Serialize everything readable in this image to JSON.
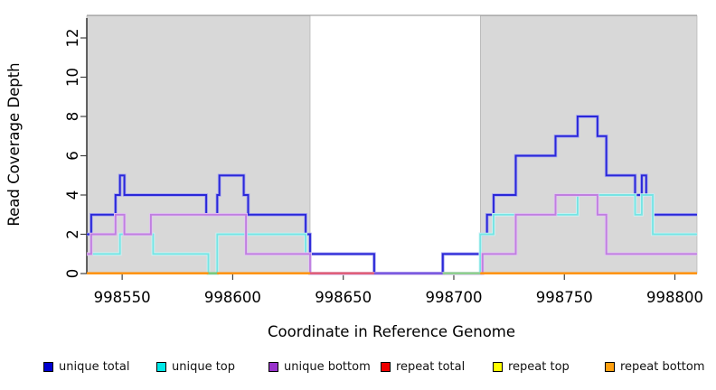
{
  "figure": {
    "y_axis_title": "Read Coverage Depth",
    "x_axis_title": "Coordinate in Reference Genome"
  },
  "chart_data": {
    "type": "line",
    "subtype": "step-coverage",
    "x_axis": {
      "label": "Coordinate in Reference Genome",
      "ticks": [
        998550,
        998600,
        998650,
        998700,
        998750,
        998800
      ],
      "range": [
        998534,
        998810
      ]
    },
    "y_axis": {
      "label": "Read Coverage Depth",
      "ticks": [
        0,
        2,
        4,
        6,
        8,
        10,
        12
      ],
      "range": [
        0,
        13.15
      ]
    },
    "grid": false,
    "legend_position": "bottom",
    "repeat_regions": [
      [
        998534,
        998635
      ],
      [
        998712,
        998810
      ]
    ],
    "region_fill": "#d8d8d8",
    "region_border": "#a8a8a8",
    "series": [
      {
        "name": "unique total",
        "color": "#2a27d8",
        "halo": "#a3a3ef",
        "segments": [
          [
            [
              998534,
              2
            ],
            [
              998536,
              3
            ],
            [
              998547,
              4
            ],
            [
              998549,
              5
            ],
            [
              998551,
              4
            ],
            [
              998588,
              3
            ],
            [
              998593,
              4
            ],
            [
              998594,
              5
            ],
            [
              998605,
              4
            ],
            [
              998607,
              3
            ],
            [
              998633,
              2
            ],
            [
              998635,
              1
            ],
            [
              998664,
              0
            ],
            [
              998695,
              1
            ],
            [
              998712,
              2
            ],
            [
              998715,
              3
            ],
            [
              998718,
              4
            ],
            [
              998728,
              6
            ],
            [
              998746,
              7
            ],
            [
              998756,
              8
            ],
            [
              998765,
              7
            ],
            [
              998769,
              5
            ],
            [
              998782,
              4
            ],
            [
              998785,
              5
            ],
            [
              998787,
              4
            ],
            [
              998790,
              3
            ],
            [
              998810,
              3
            ]
          ]
        ]
      },
      {
        "name": "unique top",
        "color": "#76e4e4",
        "halo": "#cdf4f4",
        "segments": [
          [
            [
              998534,
              1
            ],
            [
              998549,
              2
            ],
            [
              998564,
              1
            ],
            [
              998589,
              0
            ],
            [
              998593,
              2
            ],
            [
              998633,
              1
            ],
            [
              998635,
              0
            ],
            [
              998712,
              2
            ],
            [
              998718,
              3
            ],
            [
              998756,
              4
            ],
            [
              998782,
              3
            ],
            [
              998785,
              4
            ],
            [
              998790,
              2
            ],
            [
              998810,
              2
            ]
          ]
        ]
      },
      {
        "name": "unique bottom",
        "color": "#c07fe0",
        "halo": "#e3c6f2",
        "segments": [
          [
            [
              998534,
              1
            ],
            [
              998536,
              2
            ],
            [
              998547,
              3
            ],
            [
              998551,
              2
            ],
            [
              998563,
              3
            ],
            [
              998606,
              1
            ],
            [
              998635,
              0
            ],
            [
              998713,
              1
            ],
            [
              998728,
              3
            ],
            [
              998746,
              4
            ],
            [
              998765,
              3
            ],
            [
              998769,
              1
            ],
            [
              998810,
              1
            ]
          ]
        ]
      },
      {
        "name": "repeat total",
        "color": "#e60000",
        "halo": null,
        "segments": [
          [
            [
              998534,
              0
            ],
            [
              998635,
              0
            ]
          ],
          [
            [
              998712,
              0
            ],
            [
              998810,
              0
            ]
          ]
        ]
      },
      {
        "name": "repeat top",
        "color": "#ffff00",
        "halo": null,
        "segments": [
          [
            [
              998534,
              0
            ],
            [
              998635,
              0
            ]
          ],
          [
            [
              998712,
              0
            ],
            [
              998810,
              0
            ]
          ]
        ]
      },
      {
        "name": "repeat bottom",
        "color": "#ff9414",
        "halo": null,
        "segments": [
          [
            [
              998534,
              0
            ],
            [
              998635,
              0
            ]
          ],
          [
            [
              998712,
              0
            ],
            [
              998810,
              0
            ]
          ]
        ]
      }
    ],
    "baseline_segments": [
      {
        "x": [
          998534,
          998589
        ],
        "color": "#ff9414"
      },
      {
        "x": [
          998589,
          998593
        ],
        "color": "#7cc87c"
      },
      {
        "x": [
          998593,
          998635
        ],
        "color": "#ff9414"
      },
      {
        "x": [
          998635,
          998664
        ],
        "color": "#e0607a"
      },
      {
        "x": [
          998664,
          998695
        ],
        "color": "#7b5be0"
      },
      {
        "x": [
          998695,
          998712
        ],
        "color": "#8fd08f"
      },
      {
        "x": [
          998712,
          998810
        ],
        "color": "#ff9414"
      }
    ]
  },
  "legend": {
    "items": [
      {
        "label": "unique total",
        "color": "#0000d0"
      },
      {
        "label": "unique top",
        "color": "#00e8e8"
      },
      {
        "label": "unique bottom",
        "color": "#9933cc"
      },
      {
        "label": "repeat total",
        "color": "#ee0000"
      },
      {
        "label": "repeat top",
        "color": "#ffff00"
      },
      {
        "label": "repeat bottom",
        "color": "#ffa010"
      }
    ],
    "item_x": [
      48,
      173,
      297,
      421,
      545,
      669
    ]
  }
}
